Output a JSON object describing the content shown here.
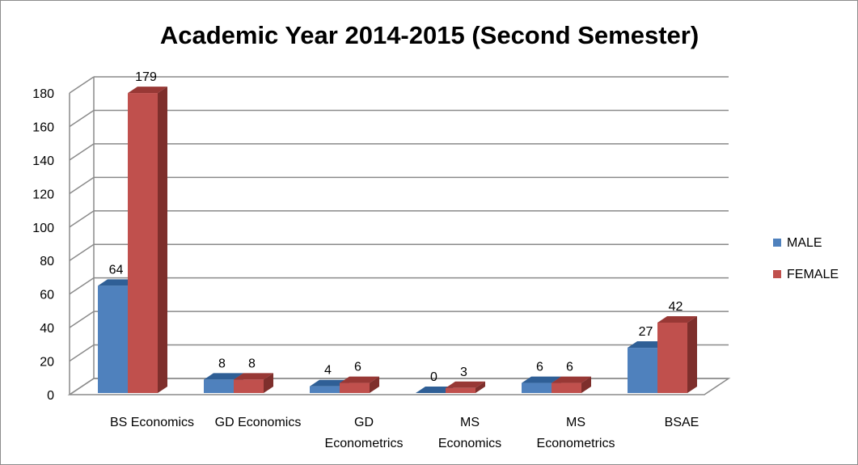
{
  "chart_data": {
    "type": "bar",
    "title": "Academic Year 2014-2015 (Second Semester)",
    "xlabel": "",
    "ylabel": "",
    "ylim": [
      0,
      180
    ],
    "y_ticks": [
      "0",
      "20",
      "40",
      "60",
      "80",
      "100",
      "120",
      "140",
      "160",
      "180"
    ],
    "grid": true,
    "style": "3d-clustered-column",
    "legend_position": "right",
    "categories": [
      [
        "BS Economics"
      ],
      [
        "GD Economics"
      ],
      [
        "GD",
        "Econometrics"
      ],
      [
        "MS",
        "Economics"
      ],
      [
        "MS",
        "Econometrics"
      ],
      [
        "BSAE"
      ]
    ],
    "series": [
      {
        "name": "MALE",
        "color": "#4F81BD",
        "top_color": "#2F5F96",
        "side_color": "#2E4F78",
        "values": [
          64,
          8,
          4,
          0,
          6,
          27
        ]
      },
      {
        "name": "FEMALE",
        "color": "#C0504D",
        "top_color": "#983835",
        "side_color": "#7E2F2C",
        "values": [
          179,
          8,
          6,
          3,
          6,
          42
        ]
      }
    ]
  }
}
